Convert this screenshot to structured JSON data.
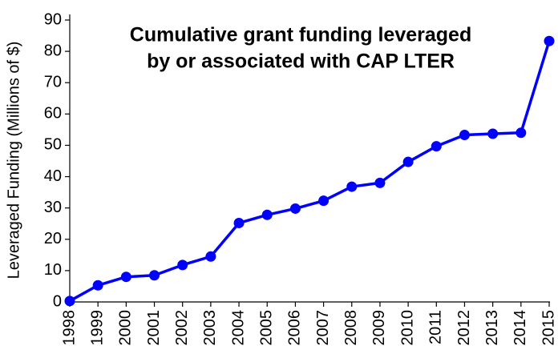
{
  "chart_data": {
    "type": "line",
    "title": [
      "Cumulative grant funding leveraged",
      "by or associated with CAP LTER"
    ],
    "y_label": "Leveraged Funding (Millions of $)",
    "categories": [
      "1998",
      "1999",
      "2000",
      "2001",
      "2002",
      "2003",
      "2004",
      "2005",
      "2006",
      "2007",
      "2008",
      "2009",
      "2010",
      "2011",
      "2012",
      "2013",
      "2014",
      "2015"
    ],
    "series": [
      {
        "name": "Leveraged Funding",
        "color": "#0000ff",
        "values": [
          0.3,
          5.3,
          8,
          8.5,
          11.8,
          14.5,
          25.2,
          27.8,
          29.8,
          32.3,
          36.8,
          38,
          44.7,
          49.7,
          53.3,
          53.7,
          54,
          83.3
        ]
      }
    ],
    "ylim": [
      0,
      90
    ],
    "yticks": [
      0,
      10,
      20,
      30,
      40,
      50,
      60,
      70,
      80,
      90
    ],
    "grid": false
  }
}
